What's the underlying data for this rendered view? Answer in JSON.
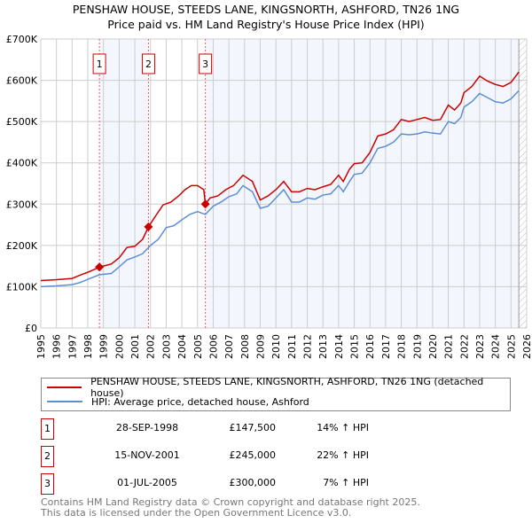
{
  "chart_data": {
    "type": "line",
    "title": "PENSHAW HOUSE, STEEDS LANE, KINGSNORTH, ASHFORD, TN26 1NG",
    "subtitle": "Price paid vs. HM Land Registry's House Price Index (HPI)",
    "xlim": [
      1995,
      2026
    ],
    "ylim": [
      0,
      700000
    ],
    "yticks": [
      {
        "v": 0,
        "label": "£0"
      },
      {
        "v": 100000,
        "label": "£100K"
      },
      {
        "v": 200000,
        "label": "£200K"
      },
      {
        "v": 300000,
        "label": "£300K"
      },
      {
        "v": 400000,
        "label": "£400K"
      },
      {
        "v": 500000,
        "label": "£500K"
      },
      {
        "v": 600000,
        "label": "£600K"
      },
      {
        "v": 700000,
        "label": "£700K"
      }
    ],
    "xticks": [
      "1995",
      "1996",
      "1997",
      "1998",
      "1999",
      "2000",
      "2001",
      "2002",
      "2003",
      "2004",
      "2005",
      "2006",
      "2007",
      "2008",
      "2009",
      "2010",
      "2011",
      "2012",
      "2013",
      "2014",
      "2015",
      "2016",
      "2017",
      "2018",
      "2019",
      "2020",
      "2021",
      "2022",
      "2023",
      "2024",
      "2025",
      "2026"
    ],
    "grid": true,
    "data_end": 2025.5,
    "series": [
      {
        "name": "PENSHAW HOUSE, STEEDS LANE, KINGSNORTH, ASHFORD, TN26 1NG (detached house)",
        "color": "#cc0000",
        "x": [
          1995,
          1996,
          1997,
          1997.5,
          1998,
          1998.75,
          1999,
          1999.5,
          2000,
          2000.5,
          2001,
          2001.5,
          2001.87,
          2002.3,
          2002.8,
          2003.3,
          2003.8,
          2004.2,
          2004.6,
          2005,
          2005.4,
          2005.5,
          2005.8,
          2006.3,
          2006.8,
          2007.3,
          2007.9,
          2008.5,
          2009,
          2009.5,
          2010,
          2010.5,
          2011,
          2011.5,
          2012,
          2012.5,
          2013,
          2013.5,
          2014,
          2014.3,
          2014.7,
          2015,
          2015.5,
          2016,
          2016.5,
          2017,
          2017.5,
          2018,
          2018.5,
          2019,
          2019.5,
          2020,
          2020.5,
          2021,
          2021.4,
          2021.8,
          2022,
          2022.5,
          2023,
          2023.5,
          2024,
          2024.5,
          2025,
          2025.5
        ],
        "y": [
          115000,
          117000,
          120000,
          128000,
          135000,
          147500,
          150000,
          155000,
          170000,
          195000,
          198000,
          215000,
          245000,
          270000,
          298000,
          305000,
          320000,
          335000,
          345000,
          345000,
          335000,
          300000,
          315000,
          320000,
          335000,
          345000,
          370000,
          355000,
          310000,
          320000,
          335000,
          355000,
          330000,
          330000,
          338000,
          335000,
          342000,
          348000,
          370000,
          355000,
          385000,
          398000,
          400000,
          425000,
          465000,
          470000,
          480000,
          505000,
          500000,
          505000,
          510000,
          503000,
          505000,
          540000,
          528000,
          545000,
          570000,
          585000,
          610000,
          598000,
          590000,
          585000,
          595000,
          620000
        ]
      },
      {
        "name": "HPI: Average price, detached house, Ashford",
        "color": "#5b8fd4",
        "x": [
          1995,
          1996,
          1997,
          1997.5,
          1998,
          1998.75,
          1999.5,
          2000,
          2000.5,
          2001,
          2001.5,
          2002,
          2002.5,
          2003,
          2003.5,
          2004,
          2004.5,
          2005,
          2005.5,
          2006,
          2006.5,
          2007,
          2007.5,
          2007.9,
          2008.5,
          2009,
          2009.5,
          2010,
          2010.5,
          2011,
          2011.5,
          2012,
          2012.5,
          2013,
          2013.5,
          2014,
          2014.3,
          2014.7,
          2015,
          2015.5,
          2016,
          2016.5,
          2017,
          2017.5,
          2018,
          2018.5,
          2019,
          2019.5,
          2020,
          2020.5,
          2021,
          2021.4,
          2021.8,
          2022,
          2022.5,
          2023,
          2023.5,
          2024,
          2024.5,
          2025,
          2025.5
        ],
        "y": [
          100000,
          102000,
          105000,
          110000,
          118000,
          129000,
          132000,
          148000,
          165000,
          172000,
          180000,
          200000,
          215000,
          243000,
          248000,
          262000,
          275000,
          282000,
          275000,
          295000,
          305000,
          318000,
          325000,
          345000,
          330000,
          290000,
          295000,
          315000,
          335000,
          305000,
          305000,
          315000,
          312000,
          322000,
          325000,
          345000,
          330000,
          355000,
          372000,
          375000,
          400000,
          435000,
          440000,
          450000,
          470000,
          468000,
          470000,
          475000,
          472000,
          470000,
          500000,
          495000,
          510000,
          535000,
          548000,
          568000,
          558000,
          548000,
          545000,
          555000,
          575000
        ]
      }
    ],
    "sales": [
      {
        "label": "1",
        "x": 1998.74,
        "y": 147500,
        "date": "28-SEP-1998",
        "price": "£147,500",
        "hpi": "14% ↑ HPI"
      },
      {
        "label": "2",
        "x": 2001.87,
        "y": 245000,
        "date": "15-NOV-2001",
        "price": "£245,000",
        "hpi": "22% ↑ HPI"
      },
      {
        "label": "3",
        "x": 2005.5,
        "y": 300000,
        "date": "01-JUL-2005",
        "price": "£300,000",
        "hpi": "7% ↑ HPI"
      }
    ]
  },
  "footer": {
    "line1": "Contains HM Land Registry data © Crown copyright and database right 2025.",
    "line2": "This data is licensed under the Open Government Licence v3.0."
  }
}
